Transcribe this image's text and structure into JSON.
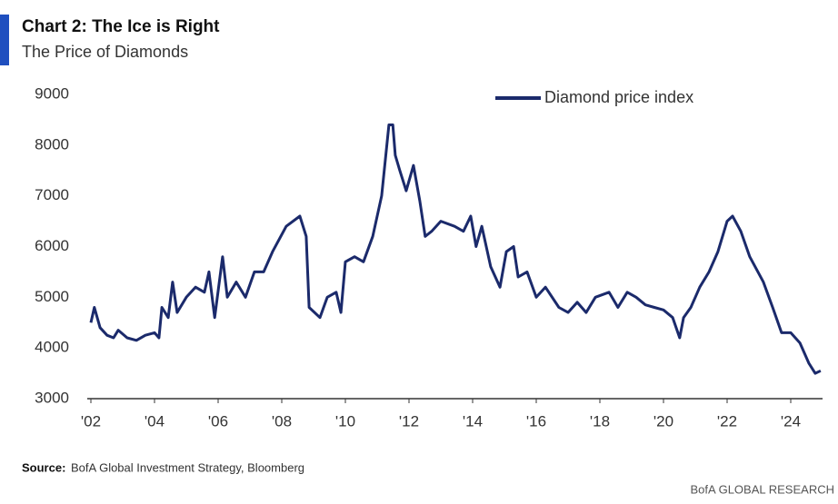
{
  "chart_data": {
    "type": "line",
    "title": "Chart 2: The Ice is Right",
    "subtitle": "The Price of Diamonds",
    "source_label": "Source:",
    "source": "BofA Global Investment Strategy, Bloomberg",
    "footer": "BofA GLOBAL RESEARCH",
    "legend": "top-right",
    "xlim": [
      2002,
      2025
    ],
    "xticks": [
      {
        "value": 2002,
        "label": "'02"
      },
      {
        "value": 2004,
        "label": "'04"
      },
      {
        "value": 2006,
        "label": "'06"
      },
      {
        "value": 2008,
        "label": "'08"
      },
      {
        "value": 2010,
        "label": "'10"
      },
      {
        "value": 2012,
        "label": "'12"
      },
      {
        "value": 2014,
        "label": "'14"
      },
      {
        "value": 2016,
        "label": "'16"
      },
      {
        "value": 2018,
        "label": "'18"
      },
      {
        "value": 2020,
        "label": "'20"
      },
      {
        "value": 2022,
        "label": "'22"
      },
      {
        "value": 2024,
        "label": "'24"
      }
    ],
    "ylim": [
      3000,
      9000
    ],
    "yticks": [
      3000,
      4000,
      5000,
      6000,
      7000,
      8000,
      9000
    ],
    "x": [
      2002.0,
      2002.11,
      2002.29,
      2002.51,
      2002.71,
      2002.86,
      2003.14,
      2003.43,
      2003.71,
      2004.0,
      2004.14,
      2004.23,
      2004.43,
      2004.57,
      2004.71,
      2005.0,
      2005.29,
      2005.57,
      2005.71,
      2005.89,
      2006.14,
      2006.29,
      2006.57,
      2006.86,
      2007.14,
      2007.43,
      2007.71,
      2008.14,
      2008.57,
      2008.77,
      2008.86,
      2009.2,
      2009.43,
      2009.71,
      2009.86,
      2010.0,
      2010.29,
      2010.57,
      2010.86,
      2011.14,
      2011.37,
      2011.49,
      2011.57,
      2011.71,
      2011.91,
      2012.14,
      2012.34,
      2012.51,
      2012.71,
      2013.0,
      2013.43,
      2013.71,
      2013.94,
      2014.11,
      2014.29,
      2014.57,
      2014.86,
      2015.06,
      2015.29,
      2015.43,
      2015.71,
      2016.0,
      2016.29,
      2016.71,
      2017.0,
      2017.29,
      2017.57,
      2017.86,
      2018.29,
      2018.57,
      2018.86,
      2019.14,
      2019.43,
      2019.71,
      2020.0,
      2020.29,
      2020.51,
      2020.63,
      2020.86,
      2021.14,
      2021.43,
      2021.71,
      2022.0,
      2022.17,
      2022.43,
      2022.71,
      2023.14,
      2023.43,
      2023.71,
      2024.0,
      2024.29,
      2024.57,
      2024.77,
      2024.94
    ],
    "series": [
      {
        "name": "Diamond price index",
        "color": "#1b2a6b",
        "values": [
          4500,
          4800,
          4400,
          4250,
          4200,
          4350,
          4200,
          4150,
          4250,
          4300,
          4200,
          4800,
          4600,
          5300,
          4700,
          5000,
          5200,
          5100,
          5500,
          4600,
          5800,
          5000,
          5300,
          5000,
          5500,
          5500,
          5900,
          6400,
          6600,
          6200,
          4800,
          4600,
          5000,
          5100,
          4700,
          5700,
          5800,
          5700,
          6200,
          7000,
          8400,
          8400,
          7800,
          7500,
          7100,
          7600,
          6900,
          6200,
          6300,
          6500,
          6400,
          6300,
          6600,
          6000,
          6400,
          5600,
          5200,
          5900,
          6000,
          5400,
          5500,
          5000,
          5200,
          4800,
          4700,
          4900,
          4700,
          5000,
          5100,
          4800,
          5100,
          5000,
          4850,
          4800,
          4750,
          4600,
          4200,
          4600,
          4800,
          5200,
          5500,
          5900,
          6500,
          6600,
          6300,
          5800,
          5300,
          4800,
          4300,
          4300,
          4100,
          3700,
          3500,
          3550
        ]
      }
    ]
  }
}
